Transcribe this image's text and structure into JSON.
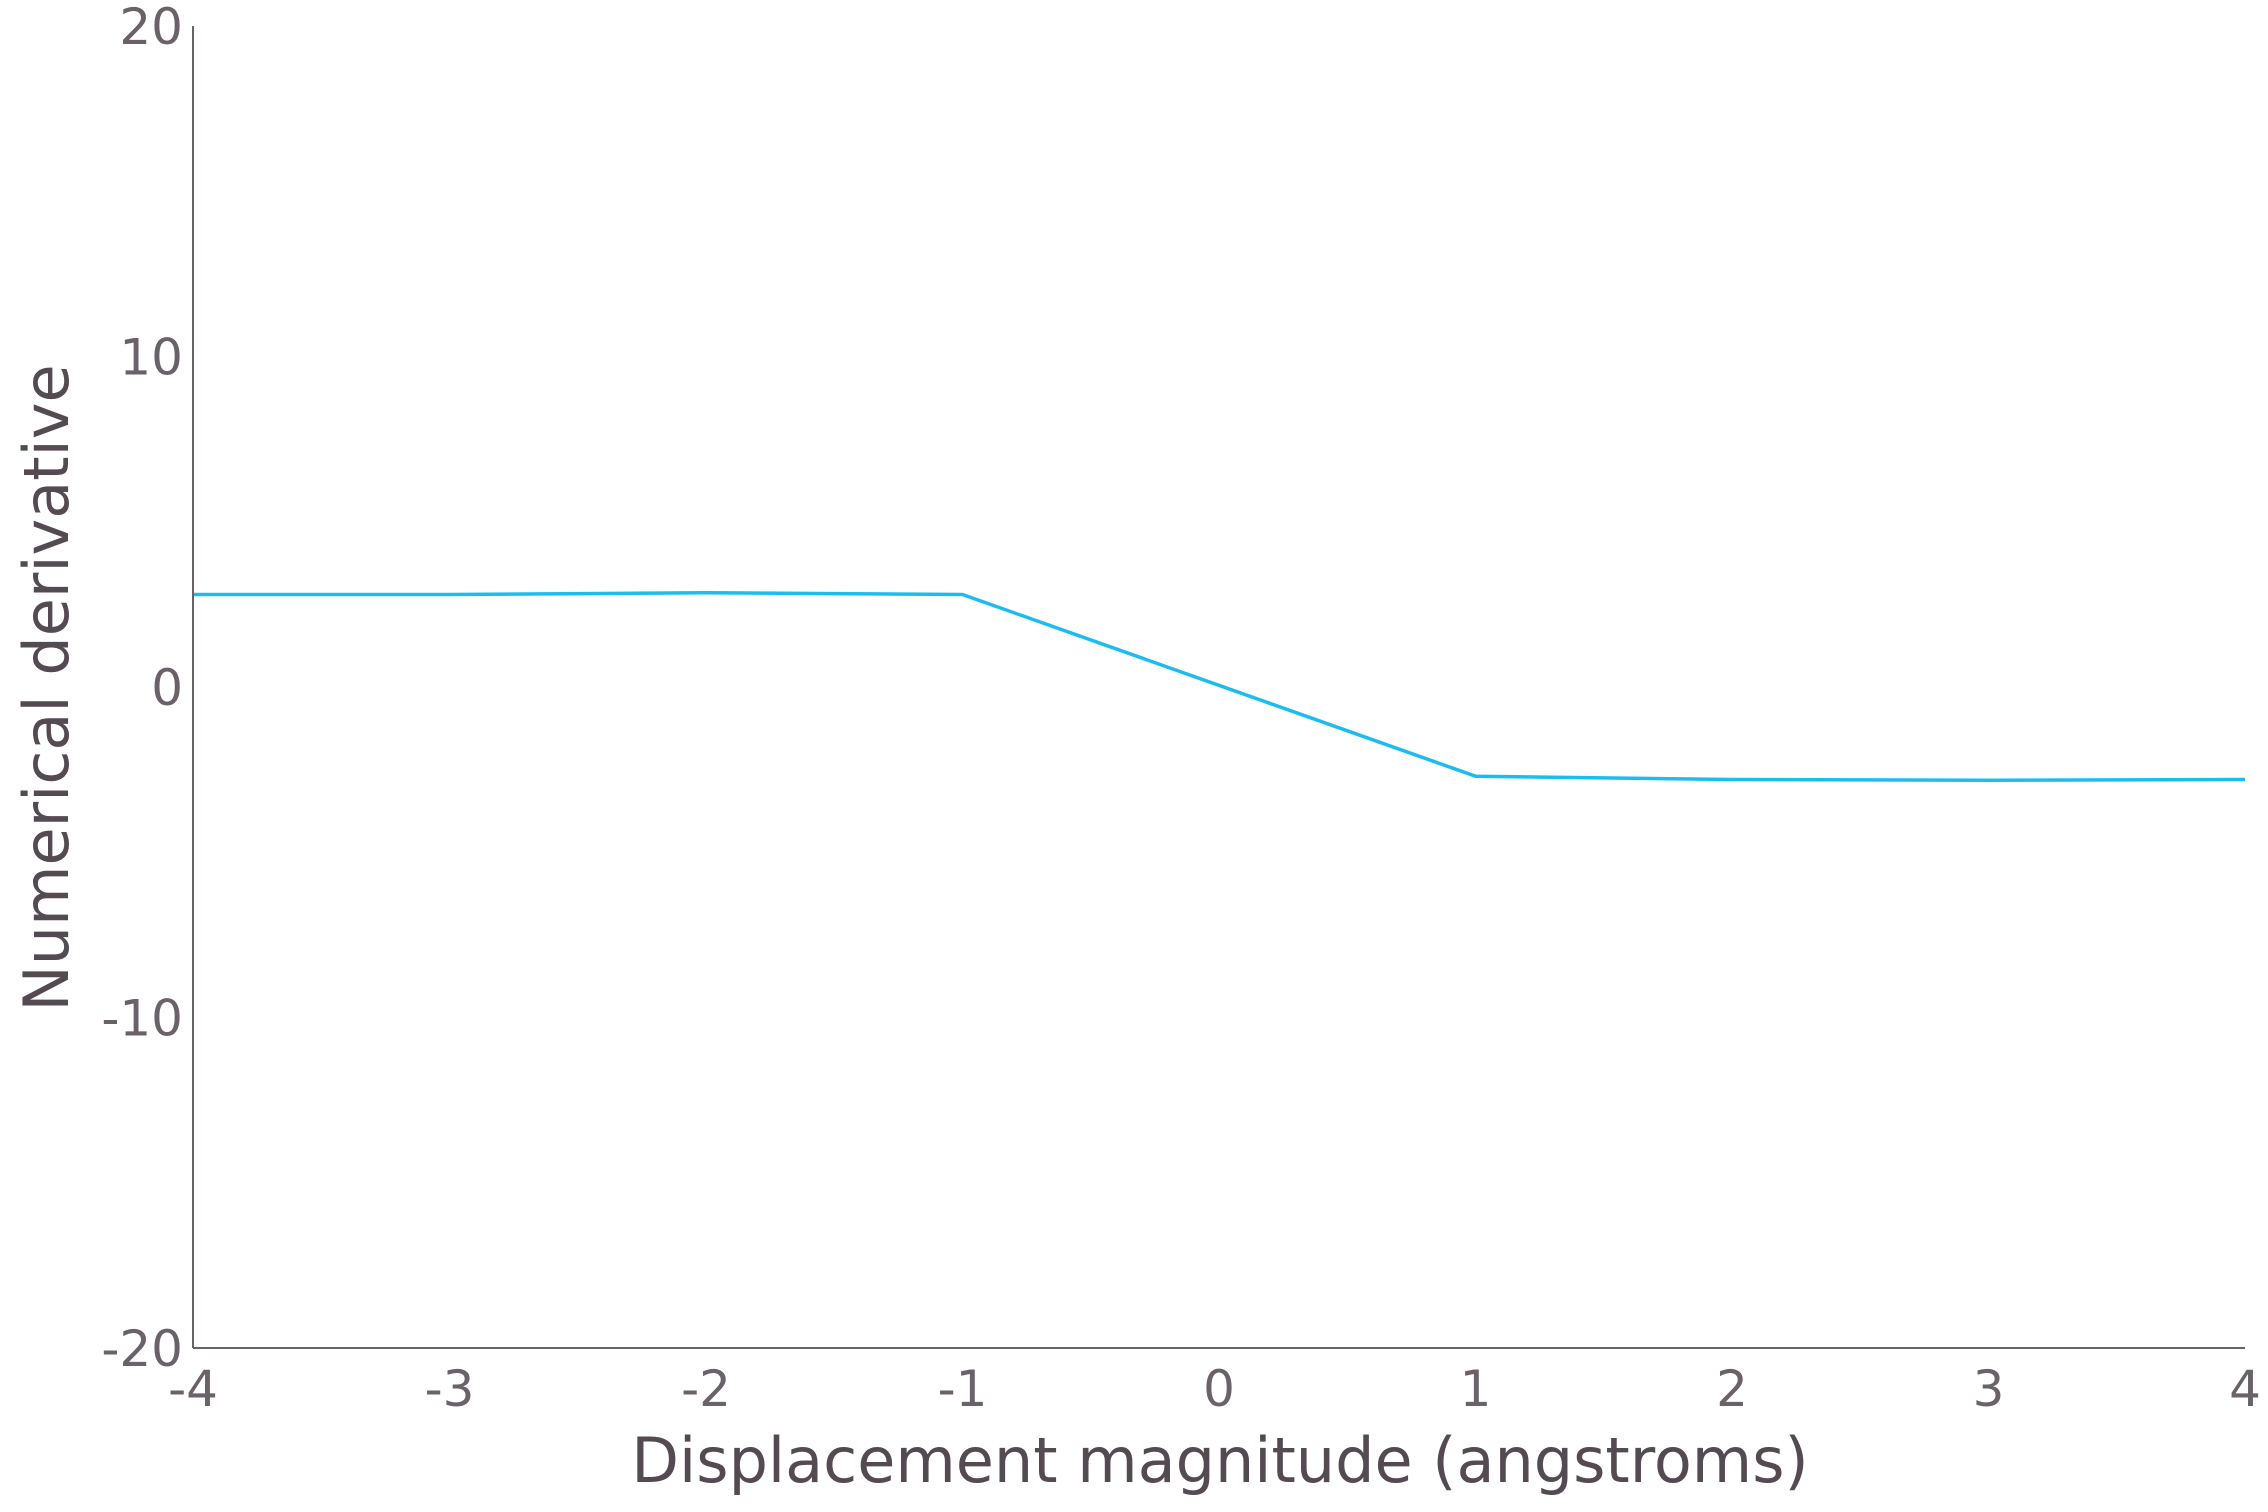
{
  "chart_data": {
    "type": "line",
    "title": "",
    "xlabel": "Displacement magnitude (angstroms)",
    "ylabel": "Numerical derivative",
    "xlim": [
      -4,
      4
    ],
    "ylim": [
      -20,
      20
    ],
    "x_ticks": [
      "-4",
      "-3",
      "-2",
      "-1",
      "0",
      "1",
      "2",
      "3",
      "4"
    ],
    "y_ticks": [
      "20",
      "10",
      "0",
      "-10",
      "-20"
    ],
    "grid": false,
    "legend": "none",
    "colors": {
      "line": "#1cbcf0",
      "axis": "#6b6169",
      "tick_text": "#6b6169",
      "axis_title": "#544a52"
    },
    "series": [
      {
        "x": [
          -4,
          -3,
          -2,
          -1,
          1,
          2,
          3,
          4
        ],
        "y": [
          2.8,
          2.8,
          2.85,
          2.8,
          -2.7,
          -2.8,
          -2.82,
          -2.8
        ]
      }
    ]
  }
}
